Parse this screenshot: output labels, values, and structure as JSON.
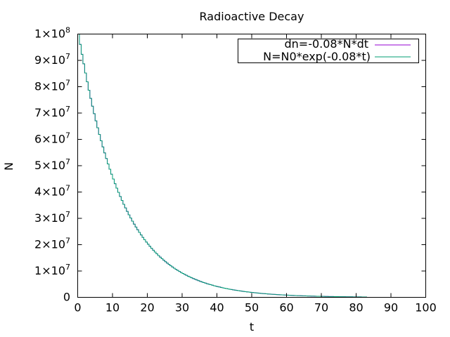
{
  "chart_data": {
    "type": "line",
    "title": "Radioactive Decay",
    "xlabel": "t",
    "ylabel": "N",
    "xlim": [
      0,
      100
    ],
    "ylim": [
      0,
      100000000
    ],
    "x_ticks": [
      "0",
      "10",
      "20",
      "30",
      "40",
      "50",
      "60",
      "70",
      "80",
      "90",
      "100"
    ],
    "y_ticks": [
      {
        "value": 0,
        "mantissa": "0",
        "exponent": ""
      },
      {
        "value": 10000000,
        "mantissa": "1×10",
        "exponent": "7"
      },
      {
        "value": 20000000,
        "mantissa": "2×10",
        "exponent": "7"
      },
      {
        "value": 30000000,
        "mantissa": "3×10",
        "exponent": "7"
      },
      {
        "value": 40000000,
        "mantissa": "4×10",
        "exponent": "7"
      },
      {
        "value": 50000000,
        "mantissa": "5×10",
        "exponent": "7"
      },
      {
        "value": 60000000,
        "mantissa": "6×10",
        "exponent": "7"
      },
      {
        "value": 70000000,
        "mantissa": "7×10",
        "exponent": "7"
      },
      {
        "value": 80000000,
        "mantissa": "8×10",
        "exponent": "7"
      },
      {
        "value": 90000000,
        "mantissa": "9×10",
        "exponent": "7"
      },
      {
        "value": 100000000,
        "mantissa": "1×10",
        "exponent": "8"
      }
    ],
    "legend_position": "top-right",
    "grid": false,
    "series": [
      {
        "name": "dn=-0.08*N*dt",
        "color": "#9400d3",
        "x": [
          0,
          5,
          10,
          15,
          20,
          25,
          30,
          35,
          40,
          45,
          50,
          55,
          60,
          65,
          70,
          75,
          80,
          83
        ],
        "y": [
          100000000,
          67032000,
          44933000,
          30119000,
          20190000,
          13534000,
          9072000,
          6081000,
          4076000,
          2732000,
          1832000,
          1228000,
          823000,
          552000,
          370000,
          248000,
          166000,
          131000
        ]
      },
      {
        "name": "N=N0*exp(-0.08*t)",
        "color": "#009e73",
        "x": [
          0,
          5,
          10,
          15,
          20,
          25,
          30,
          35,
          40,
          45,
          50,
          55,
          60,
          65,
          70,
          75,
          80,
          83
        ],
        "y": [
          100000000,
          67032000,
          44933000,
          30119000,
          20190000,
          13534000,
          9072000,
          6081000,
          4076000,
          2732000,
          1832000,
          1228000,
          823000,
          552000,
          370000,
          248000,
          166000,
          131000
        ]
      }
    ]
  }
}
